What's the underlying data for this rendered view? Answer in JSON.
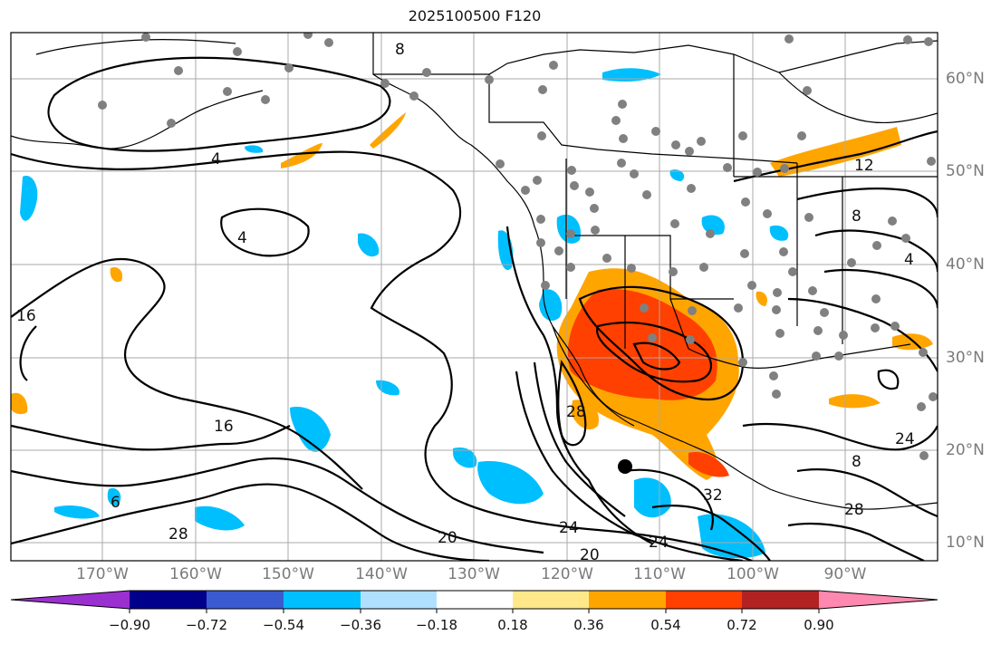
{
  "title": "2025100500 F120",
  "lon_labels": [
    "170°W",
    "160°W",
    "150°W",
    "140°W",
    "130°W",
    "120°W",
    "110°W",
    "100°W",
    "90°W"
  ],
  "lat_labels": [
    "60°N",
    "50°N",
    "40°N",
    "30°N",
    "20°N",
    "10°N"
  ],
  "colorbar": {
    "ticks": [
      "−0.90",
      "−0.72",
      "−0.54",
      "−0.36",
      "−0.18",
      "0.18",
      "0.36",
      "0.54",
      "0.72",
      "0.90"
    ],
    "colors": [
      "#9b30d0",
      "#00008b",
      "#3a5bd0",
      "#00bfff",
      "#b0e0ff",
      "#ffffff",
      "#ffe88a",
      "#ffa500",
      "#ff4000",
      "#b22222",
      "#ff88b0"
    ]
  },
  "contour_labels": [
    "8",
    "4",
    "4",
    "16",
    "16",
    "6",
    "28",
    "20",
    "20",
    "24",
    "24",
    "32",
    "28",
    "12",
    "8",
    "4",
    "24",
    "8",
    "28"
  ],
  "colors": {
    "land_line": "#000000",
    "grid": "#aaaaaa",
    "station": "#808080"
  }
}
